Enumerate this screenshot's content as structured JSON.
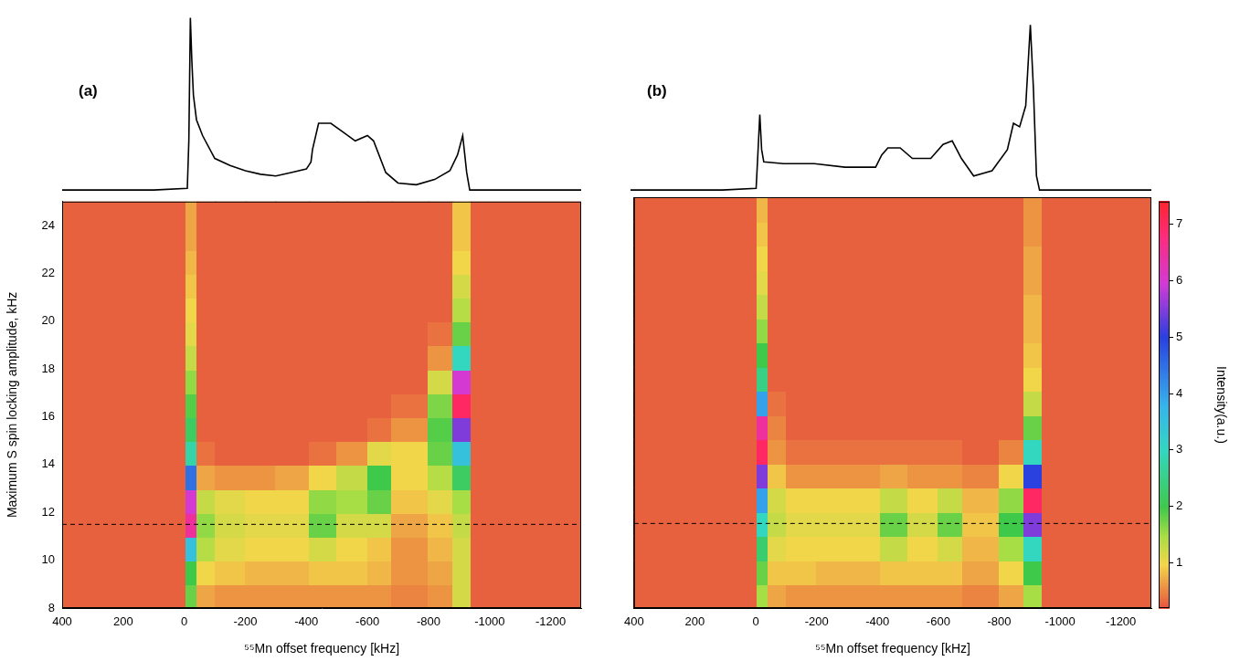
{
  "chart_data": [
    {
      "type": "line",
      "panel": "(a)",
      "color": "#000000",
      "tick_labels": false,
      "xlim": [
        400,
        -1300
      ],
      "ylim": [
        0,
        1.05
      ],
      "x": [
        400,
        100,
        -10,
        -15,
        -20,
        -25,
        -30,
        -40,
        -60,
        -100,
        -150,
        -200,
        -250,
        -300,
        -350,
        -400,
        -415,
        -420,
        -440,
        -480,
        -520,
        -560,
        -600,
        -620,
        -660,
        -700,
        -760,
        -820,
        -870,
        -895,
        -912,
        -925,
        -935,
        -1000,
        -1300
      ],
      "values": [
        0.02,
        0.02,
        0.03,
        0.3,
        1.0,
        0.75,
        0.56,
        0.42,
        0.33,
        0.2,
        0.16,
        0.13,
        0.11,
        0.1,
        0.12,
        0.14,
        0.18,
        0.25,
        0.4,
        0.4,
        0.35,
        0.3,
        0.33,
        0.3,
        0.12,
        0.06,
        0.05,
        0.08,
        0.13,
        0.22,
        0.33,
        0.12,
        0.02,
        0.02,
        0.02
      ]
    },
    {
      "type": "heatmap",
      "xlabel": "⁵⁵Mn offset frequency [kHz]",
      "ylabel": "Maximum S spin locking amplitude, kHz",
      "xlim": [
        400,
        -1300
      ],
      "ylim": [
        8,
        25
      ],
      "xticks": [
        400,
        200,
        0,
        -200,
        -400,
        -600,
        -800,
        -1000,
        -1200
      ],
      "yticks": [
        8,
        10,
        12,
        14,
        16,
        18,
        20,
        22,
        24
      ],
      "grid": false,
      "tick_labels": true,
      "hline": {
        "y": 11.5,
        "line_style": "dashed"
      },
      "x_edges": [
        400,
        -5,
        -40,
        -100,
        -200,
        -300,
        -410,
        -500,
        -600,
        -680,
        -800,
        -880,
        -940,
        -1300
      ],
      "y_edges": [
        8,
        9,
        10,
        11,
        12,
        13,
        14,
        15,
        16,
        17,
        18,
        19,
        20,
        21,
        22,
        23,
        24,
        25
      ],
      "cells": [
        [
          0.3,
          1.8,
          0.7,
          0.6,
          0.6,
          0.6,
          0.6,
          0.6,
          0.6,
          0.5,
          0.6,
          1.2,
          0.3
        ],
        [
          0.3,
          2.0,
          1.0,
          0.9,
          0.8,
          0.8,
          0.9,
          0.9,
          0.8,
          0.6,
          0.7,
          1.2,
          0.3
        ],
        [
          0.3,
          3.5,
          1.4,
          1.1,
          1.0,
          1.0,
          1.2,
          1.0,
          0.9,
          0.6,
          0.8,
          1.2,
          0.3
        ],
        [
          0.3,
          6.5,
          1.6,
          1.2,
          1.1,
          1.1,
          1.8,
          1.2,
          1.2,
          0.7,
          0.9,
          1.3,
          0.3
        ],
        [
          0.3,
          6.0,
          1.3,
          1.1,
          1.0,
          1.0,
          1.6,
          1.5,
          1.8,
          0.9,
          1.1,
          1.5,
          0.3
        ],
        [
          0.3,
          4.5,
          0.7,
          0.6,
          0.6,
          0.7,
          1.0,
          1.3,
          2.0,
          1.0,
          1.4,
          2.2,
          0.3
        ],
        [
          0.3,
          2.8,
          0.4,
          0.3,
          0.3,
          0.3,
          0.4,
          0.6,
          1.1,
          1.0,
          1.8,
          3.5,
          0.3
        ],
        [
          0.3,
          2.2,
          0.3,
          0.3,
          0.3,
          0.3,
          0.3,
          0.3,
          0.4,
          0.6,
          1.9,
          5.5,
          0.3
        ],
        [
          0.3,
          1.9,
          0.3,
          0.3,
          0.3,
          0.3,
          0.3,
          0.3,
          0.3,
          0.4,
          1.7,
          7.0,
          0.3
        ],
        [
          0.3,
          1.6,
          0.3,
          0.3,
          0.3,
          0.3,
          0.3,
          0.3,
          0.3,
          0.3,
          1.2,
          6.0,
          0.3
        ],
        [
          0.3,
          1.3,
          0.3,
          0.3,
          0.3,
          0.3,
          0.3,
          0.3,
          0.3,
          0.3,
          0.6,
          3.0,
          0.3
        ],
        [
          0.3,
          1.1,
          0.3,
          0.3,
          0.3,
          0.3,
          0.3,
          0.3,
          0.3,
          0.3,
          0.4,
          1.8,
          0.3
        ],
        [
          0.3,
          1.0,
          0.3,
          0.3,
          0.3,
          0.3,
          0.3,
          0.3,
          0.3,
          0.3,
          0.3,
          1.4,
          0.3
        ],
        [
          0.3,
          0.9,
          0.3,
          0.3,
          0.3,
          0.3,
          0.3,
          0.3,
          0.3,
          0.3,
          0.3,
          1.2,
          0.3
        ],
        [
          0.3,
          0.8,
          0.3,
          0.3,
          0.3,
          0.3,
          0.3,
          0.3,
          0.3,
          0.3,
          0.3,
          1.0,
          0.3
        ],
        [
          0.3,
          0.7,
          0.3,
          0.3,
          0.3,
          0.3,
          0.3,
          0.3,
          0.3,
          0.3,
          0.3,
          0.9,
          0.3
        ],
        [
          0.3,
          0.7,
          0.3,
          0.3,
          0.3,
          0.3,
          0.3,
          0.3,
          0.3,
          0.3,
          0.3,
          0.9,
          0.3
        ]
      ]
    },
    {
      "type": "line",
      "panel": "(b)",
      "color": "#000000",
      "tick_labels": false,
      "xlim": [
        400,
        -1300
      ],
      "ylim": [
        0,
        1.05
      ],
      "x": [
        400,
        100,
        -10,
        -15,
        -22,
        -28,
        -35,
        -100,
        -200,
        -300,
        -400,
        -420,
        -440,
        -480,
        -520,
        -580,
        -620,
        -650,
        -680,
        -720,
        -780,
        -830,
        -850,
        -870,
        -890,
        -905,
        -915,
        -925,
        -935,
        -1000,
        -1300
      ],
      "values": [
        0.02,
        0.02,
        0.03,
        0.2,
        0.45,
        0.25,
        0.18,
        0.17,
        0.17,
        0.15,
        0.15,
        0.22,
        0.26,
        0.26,
        0.2,
        0.2,
        0.28,
        0.3,
        0.2,
        0.1,
        0.13,
        0.25,
        0.4,
        0.38,
        0.5,
        0.96,
        0.6,
        0.1,
        0.02,
        0.02,
        0.02
      ]
    },
    {
      "type": "heatmap",
      "xlabel": "⁵⁵Mn offset frequency [kHz]",
      "xlim": [
        400,
        -1300
      ],
      "ylim": [
        8,
        25
      ],
      "xticks": [
        400,
        200,
        0,
        -200,
        -400,
        -600,
        -800,
        -1000,
        -1200
      ],
      "yticks": [
        8,
        10,
        12,
        14,
        16,
        18,
        20,
        22,
        24
      ],
      "grid": false,
      "tick_labels": "x",
      "hline": {
        "y": 11.5,
        "line_style": "dashed"
      },
      "x_edges": [
        400,
        -5,
        -40,
        -100,
        -200,
        -300,
        -410,
        -500,
        -600,
        -680,
        -800,
        -880,
        -940,
        -1300
      ],
      "y_edges": [
        8,
        9,
        10,
        11,
        12,
        13,
        14,
        15,
        16,
        17,
        18,
        19,
        20,
        21,
        22,
        23,
        24,
        25
      ],
      "cells": [
        [
          0.3,
          1.5,
          0.7,
          0.6,
          0.6,
          0.6,
          0.6,
          0.6,
          0.6,
          0.5,
          0.7,
          1.5,
          0.3
        ],
        [
          0.3,
          1.8,
          0.9,
          0.9,
          0.8,
          0.8,
          0.9,
          0.9,
          0.9,
          0.7,
          1.0,
          2.0,
          0.3
        ],
        [
          0.3,
          2.3,
          1.1,
          1.0,
          1.0,
          1.0,
          1.3,
          1.0,
          1.2,
          0.8,
          1.5,
          3.0,
          0.3
        ],
        [
          0.3,
          3.0,
          1.3,
          1.1,
          1.1,
          1.1,
          1.8,
          1.2,
          1.8,
          0.9,
          2.0,
          5.5,
          0.3
        ],
        [
          0.3,
          4.0,
          1.2,
          1.0,
          1.0,
          1.0,
          1.3,
          1.0,
          1.3,
          0.8,
          1.6,
          7.0,
          0.3
        ],
        [
          0.3,
          5.5,
          0.9,
          0.6,
          0.6,
          0.6,
          0.7,
          0.6,
          0.6,
          0.5,
          1.0,
          5.0,
          0.3
        ],
        [
          0.3,
          7.0,
          0.6,
          0.4,
          0.4,
          0.4,
          0.4,
          0.4,
          0.4,
          0.3,
          0.5,
          3.0,
          0.3
        ],
        [
          0.3,
          6.5,
          0.5,
          0.3,
          0.3,
          0.3,
          0.3,
          0.3,
          0.3,
          0.3,
          0.3,
          1.8,
          0.3
        ],
        [
          0.3,
          4.0,
          0.4,
          0.3,
          0.3,
          0.3,
          0.3,
          0.3,
          0.3,
          0.3,
          0.3,
          1.3,
          0.3
        ],
        [
          0.3,
          2.5,
          0.3,
          0.3,
          0.3,
          0.3,
          0.3,
          0.3,
          0.3,
          0.3,
          0.3,
          1.0,
          0.3
        ],
        [
          0.3,
          2.0,
          0.3,
          0.3,
          0.3,
          0.3,
          0.3,
          0.3,
          0.3,
          0.3,
          0.3,
          0.9,
          0.3
        ],
        [
          0.3,
          1.6,
          0.3,
          0.3,
          0.3,
          0.3,
          0.3,
          0.3,
          0.3,
          0.3,
          0.3,
          0.8,
          0.3
        ],
        [
          0.3,
          1.3,
          0.3,
          0.3,
          0.3,
          0.3,
          0.3,
          0.3,
          0.3,
          0.3,
          0.3,
          0.8,
          0.3
        ],
        [
          0.3,
          1.1,
          0.3,
          0.3,
          0.3,
          0.3,
          0.3,
          0.3,
          0.3,
          0.3,
          0.3,
          0.7,
          0.3
        ],
        [
          0.3,
          1.0,
          0.3,
          0.3,
          0.3,
          0.3,
          0.3,
          0.3,
          0.3,
          0.3,
          0.3,
          0.7,
          0.3
        ],
        [
          0.3,
          0.9,
          0.3,
          0.3,
          0.3,
          0.3,
          0.3,
          0.3,
          0.3,
          0.3,
          0.3,
          0.6,
          0.3
        ],
        [
          0.3,
          0.8,
          0.3,
          0.3,
          0.3,
          0.3,
          0.3,
          0.3,
          0.3,
          0.3,
          0.3,
          0.6,
          0.3
        ]
      ],
      "colorbar": {
        "range": [
          0.2,
          7.4
        ],
        "ticks": [
          1,
          2,
          3,
          4,
          5,
          6,
          7
        ],
        "label": "Intensity(a.u.)"
      }
    }
  ]
}
